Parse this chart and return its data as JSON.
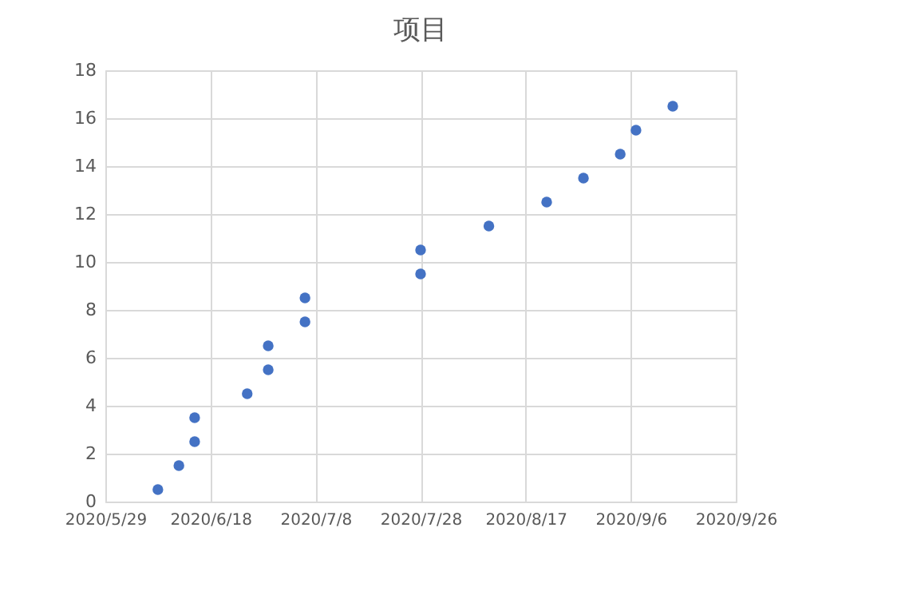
{
  "chart_data": {
    "type": "scatter",
    "title": "项目",
    "x": [
      "2020-06-08",
      "2020-06-12",
      "2020-06-15",
      "2020-06-15",
      "2020-06-25",
      "2020-06-29",
      "2020-06-29",
      "2020-07-06",
      "2020-07-06",
      "2020-07-28",
      "2020-07-28",
      "2020-08-10",
      "2020-08-21",
      "2020-08-28",
      "2020-09-04",
      "2020-09-07",
      "2020-09-14"
    ],
    "series": [
      {
        "color": "#4472c4",
        "values": [
          0.5,
          1.5,
          2.5,
          3.5,
          4.5,
          5.5,
          6.5,
          7.5,
          8.5,
          9.5,
          10.5,
          11.5,
          12.5,
          13.5,
          14.5,
          15.5,
          16.5
        ]
      }
    ],
    "xlim": [
      "2020-05-29",
      "2020-09-26"
    ],
    "xticks": [
      {
        "value": "2020-05-29",
        "label": "2020/5/29"
      },
      {
        "value": "2020-06-18",
        "label": "2020/6/18"
      },
      {
        "value": "2020-07-08",
        "label": "2020/7/8"
      },
      {
        "value": "2020-07-28",
        "label": "2020/7/28"
      },
      {
        "value": "2020-08-17",
        "label": "2020/8/17"
      },
      {
        "value": "2020-09-06",
        "label": "2020/9/6"
      },
      {
        "value": "2020-09-26",
        "label": "2020/9/26"
      }
    ],
    "ylim": [
      0,
      18
    ],
    "yticks": [
      0,
      2,
      4,
      6,
      8,
      10,
      12,
      14,
      16,
      18
    ],
    "grid": true,
    "marker": "circle",
    "legend": false
  }
}
